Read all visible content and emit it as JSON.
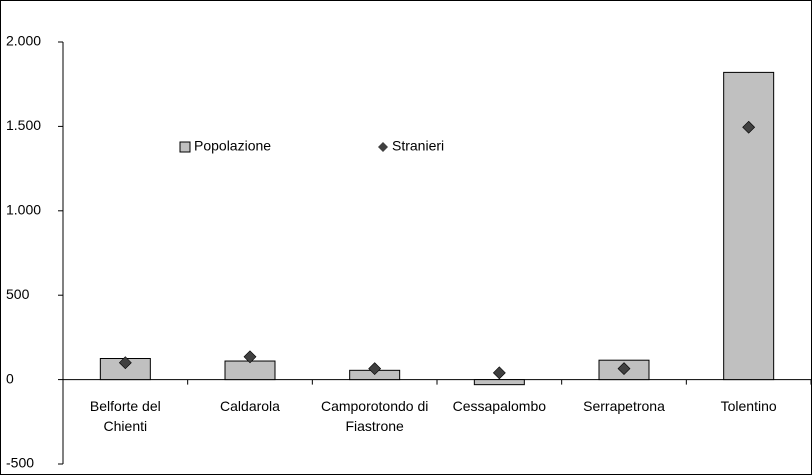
{
  "chart_data": {
    "type": "bar",
    "categories": [
      "Belforte del Chienti",
      "Caldarola",
      "Camporotondo di Fiastrone",
      "Cessapalombo",
      "Serrapetrona",
      "Tolentino"
    ],
    "series": [
      {
        "name": "Popolazione",
        "color": "#c0c0c0",
        "mark": "bar",
        "values": [
          125,
          110,
          55,
          -30,
          115,
          1820
        ]
      },
      {
        "name": "Stranieri",
        "color": "#404040",
        "mark": "diamond",
        "values": [
          100,
          135,
          65,
          40,
          65,
          1495
        ]
      }
    ],
    "ylim": [
      -500,
      2000
    ],
    "yticks": [
      {
        "value": -500,
        "label": "-500"
      },
      0,
      500,
      {
        "value": 1000,
        "label": "1.000"
      },
      {
        "value": 1500,
        "label": "1.500"
      },
      {
        "value": 2000,
        "label": "2.000"
      }
    ],
    "grid": false,
    "legend": "upper left"
  }
}
